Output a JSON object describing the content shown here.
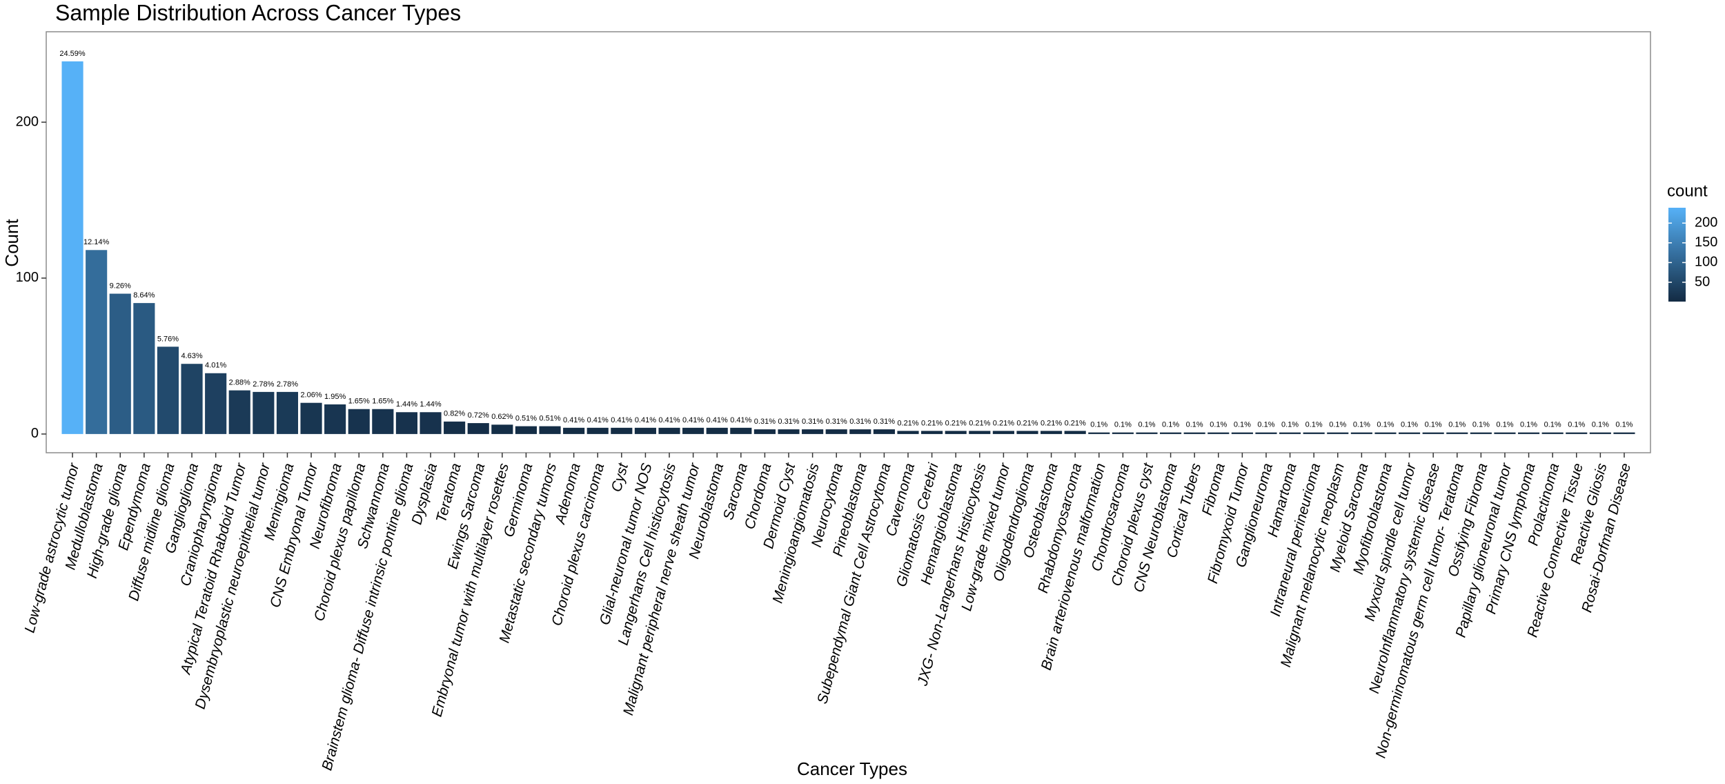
{
  "chart_data": {
    "type": "bar",
    "title": "Sample Distribution Across Cancer Types",
    "x_label": "Cancer Types",
    "y_label": "Count",
    "categories": [
      "Low-grade astrocytic tumor",
      "Medulloblastoma",
      "High-grade glioma",
      "Ependymoma",
      "Diffuse midline glioma",
      "Ganglioglioma",
      "Craniopharyngioma",
      "Atypical Teratoid Rhabdoid Tumor",
      "Dysembryoplastic neuroepithelial tumor",
      "Meningioma",
      "CNS Embryonal Tumor",
      "Neurofibroma",
      "Choroid plexus papilloma",
      "Schwannoma",
      "Brainstem glioma- Diffuse intrinsic pontine glioma",
      "Dysplasia",
      "Teratoma",
      "Ewings Sarcoma",
      "Embryonal tumor with multilayer rosettes",
      "Germinoma",
      "Metastatic secondary tumors",
      "Adenoma",
      "Choroid plexus carcinoma",
      "Cyst",
      "Glial-neuronal tumor NOS",
      "Langerhans Cell histiocytosis",
      "Malignant peripheral nerve sheath tumor",
      "Neuroblastoma",
      "Sarcoma",
      "Chordoma",
      "Dermoid Cyst",
      "Meningioangiomatosis",
      "Neurocytoma",
      "Pineoblastoma",
      "Subependymal Giant Cell Astrocytoma",
      "Cavernoma",
      "Gliomatosis Cerebri",
      "Hemangioblastoma",
      "JXG- Non-Langerhans Histiocytosis",
      "Low-grade mixed tumor",
      "Oligodendroglioma",
      "Osteoblastoma",
      "Rhabdomyosarcoma",
      "Brain arteriovenous malformation",
      "Chondrosarcoma",
      "Choroid plexus cyst",
      "CNS Neuroblastoma",
      "Cortical Tubers",
      "Fibroma",
      "Fibromyxoid Tumor",
      "Ganglioneuroma",
      "Hamartoma",
      "Intraneural perineurioma",
      "Malignant melanocytic neoplasm",
      "Myeloid Sarcoma",
      "Myofibroblastoma",
      "Myxoid spindle cell tumor",
      "NeuroInflammatory systemic disease",
      "Non-germinomatous germ cell tumor- Teratoma",
      "Ossifying Fibroma",
      "Papillary glioneuronal tumor",
      "Primary CNS lymphoma",
      "Prolactinoma",
      "Reactive Connective Tissue",
      "Reactive Gliosis",
      "Rosai-Dorfman Disease"
    ],
    "values": [
      239,
      118,
      90,
      84,
      56,
      45,
      39,
      28,
      27,
      27,
      20,
      19,
      16,
      16,
      14,
      14,
      8,
      7,
      6,
      5,
      5,
      4,
      4,
      4,
      4,
      4,
      4,
      4,
      4,
      3,
      3,
      3,
      3,
      3,
      3,
      2,
      2,
      2,
      2,
      2,
      2,
      2,
      2,
      1,
      1,
      1,
      1,
      1,
      1,
      1,
      1,
      1,
      1,
      1,
      1,
      1,
      1,
      1,
      1,
      1,
      1,
      1,
      1,
      1,
      1,
      1
    ],
    "percent_labels": [
      "24.59%",
      "12.14%",
      "9.26%",
      "8.64%",
      "5.76%",
      "4.63%",
      "4.01%",
      "2.88%",
      "2.78%",
      "2.78%",
      "2.06%",
      "1.95%",
      "1.65%",
      "1.65%",
      "1.44%",
      "1.44%",
      "0.82%",
      "0.72%",
      "0.62%",
      "0.51%",
      "0.51%",
      "0.41%",
      "0.41%",
      "0.41%",
      "0.41%",
      "0.41%",
      "0.41%",
      "0.41%",
      "0.41%",
      "0.31%",
      "0.31%",
      "0.31%",
      "0.31%",
      "0.31%",
      "0.31%",
      "0.21%",
      "0.21%",
      "0.21%",
      "0.21%",
      "0.21%",
      "0.21%",
      "0.21%",
      "0.21%",
      "0.1%",
      "0.1%",
      "0.1%",
      "0.1%",
      "0.1%",
      "0.1%",
      "0.1%",
      "0.1%",
      "0.1%",
      "0.1%",
      "0.1%",
      "0.1%",
      "0.1%",
      "0.1%",
      "0.1%",
      "0.1%",
      "0.1%",
      "0.1%",
      "0.1%",
      "0.1%",
      "0.1%",
      "0.1%",
      "0.1%"
    ],
    "ylim": [
      -12,
      258
    ],
    "yticks": [
      0,
      100,
      200
    ],
    "grid": false,
    "legend": {
      "title": "count",
      "position": "right",
      "low_color": "#132B43",
      "high_color": "#56B1F7",
      "lim": [
        1,
        239
      ],
      "ticks": [
        50,
        100,
        150,
        200
      ]
    }
  }
}
